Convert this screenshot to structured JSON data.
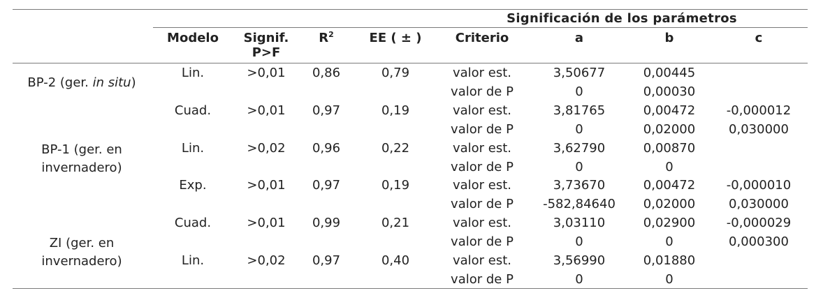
{
  "table": {
    "span_header": "Significación de los parámetros",
    "headers": {
      "modelo": "Modelo",
      "signif_line1": "Signif.",
      "signif_line2": "P>F",
      "r2_base": "R",
      "r2_sup": "2",
      "ee": "EE ( ± )",
      "criterio": "Criterio",
      "a": "a",
      "b": "b",
      "c": "c"
    },
    "groups": [
      {
        "pre": "BP-2 (ger. ",
        "italic": "in situ",
        "post": ")"
      },
      {
        "line1": "BP-1 (ger. en",
        "line2": "invernadero)"
      },
      {
        "line1": "ZI (ger. en",
        "line2": "invernadero)"
      }
    ],
    "rows": [
      {
        "modelo": "Lin.",
        "signif": ">0,01",
        "r2": "0,86",
        "ee": "0,79",
        "criterio": "valor est.",
        "a": "3,50677",
        "b": "0,00445",
        "c": ""
      },
      {
        "modelo": "",
        "signif": "",
        "r2": "",
        "ee": "",
        "criterio": "valor de P",
        "a": "0",
        "b": "0,00030",
        "c": ""
      },
      {
        "modelo": "Cuad.",
        "signif": ">0,01",
        "r2": "0,97",
        "ee": "0,19",
        "criterio": "valor est.",
        "a": "3,81765",
        "b": "0,00472",
        "c": "-0,000012"
      },
      {
        "modelo": "",
        "signif": "",
        "r2": "",
        "ee": "",
        "criterio": "valor de P",
        "a": "0",
        "b": "0,02000",
        "c": "0,030000"
      },
      {
        "modelo": "Lin.",
        "signif": ">0,02",
        "r2": "0,96",
        "ee": "0,22",
        "criterio": "valor est.",
        "a": "3,62790",
        "b": "0,00870",
        "c": ""
      },
      {
        "modelo": "",
        "signif": "",
        "r2": "",
        "ee": "",
        "criterio": "valor de P",
        "a": "0",
        "b": "0",
        "c": ""
      },
      {
        "modelo": "Exp.",
        "signif": ">0,01",
        "r2": "0,97",
        "ee": "0,19",
        "criterio": "valor est.",
        "a": "3,73670",
        "b": "0,00472",
        "c": "-0,000010"
      },
      {
        "modelo": "",
        "signif": "",
        "r2": "",
        "ee": "",
        "criterio": "valor de P",
        "a": "-582,84640",
        "b": "0,02000",
        "c": "0,030000"
      },
      {
        "modelo": "Cuad.",
        "signif": ">0,01",
        "r2": "0,99",
        "ee": "0,21",
        "criterio": "valor est.",
        "a": "3,03110",
        "b": "0,02900",
        "c": "-0,000029"
      },
      {
        "modelo": "",
        "signif": "",
        "r2": "",
        "ee": "",
        "criterio": "valor de P",
        "a": "0",
        "b": "0",
        "c": "0,000300"
      },
      {
        "modelo": "Lin.",
        "signif": ">0,02",
        "r2": "0,97",
        "ee": "0,40",
        "criterio": "valor est.",
        "a": "3,56990",
        "b": "0,01880",
        "c": ""
      },
      {
        "modelo": "",
        "signif": "",
        "r2": "",
        "ee": "",
        "criterio": "valor de P",
        "a": "0",
        "b": "0",
        "c": ""
      }
    ]
  }
}
